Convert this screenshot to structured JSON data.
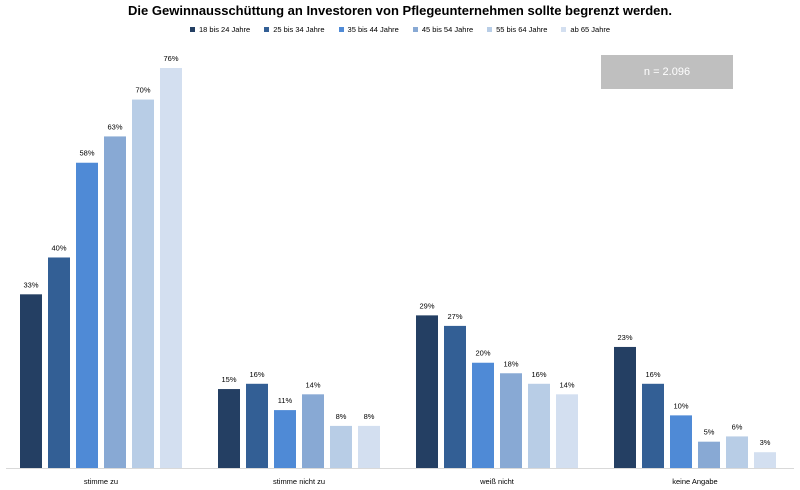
{
  "chart_data": {
    "type": "bar",
    "title": "Die Gewinnausschüttung an Investoren von Pflegeunternehmen sollte begrenzt werden.",
    "annotation": "n = 2.096",
    "categories": [
      "stimme zu",
      "stimme nicht zu",
      "weiß nicht",
      "keine Angabe"
    ],
    "series": [
      {
        "name": "18 bis 24 Jahre",
        "color": "#243f63",
        "values": [
          33,
          15,
          29,
          23
        ],
        "labels": [
          "33%",
          "15%",
          "29%",
          "23%"
        ]
      },
      {
        "name": "25 bis 34 Jahre",
        "color": "#335f95",
        "values": [
          40,
          16,
          27,
          16
        ],
        "labels": [
          "40%",
          "16%",
          "27%",
          "16%"
        ]
      },
      {
        "name": "35 bis 44 Jahre",
        "color": "#4f8ad6",
        "values": [
          58,
          11,
          20,
          10
        ],
        "labels": [
          "58%",
          "11%",
          "20%",
          "10%"
        ]
      },
      {
        "name": "45 bis 54 Jahre",
        "color": "#88a9d4",
        "values": [
          63,
          14,
          18,
          5
        ],
        "labels": [
          "63%",
          "14%",
          "18%",
          "5%"
        ]
      },
      {
        "name": "55 bis 64 Jahre",
        "color": "#b8cde6",
        "values": [
          70,
          8,
          16,
          6
        ],
        "labels": [
          "70%",
          "8%",
          "16%",
          "6%"
        ]
      },
      {
        "name": "ab 65 Jahre",
        "color": "#d3dff0",
        "values": [
          76,
          8,
          14,
          3
        ],
        "labels": [
          "76%",
          "8%",
          "14%",
          "3%"
        ]
      }
    ],
    "ylim": [
      0,
      80
    ],
    "grid": false,
    "legend_position": "top"
  }
}
